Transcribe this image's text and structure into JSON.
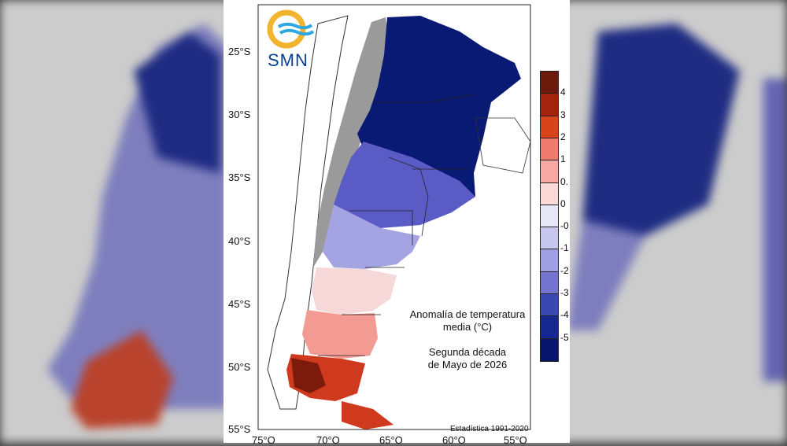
{
  "logo": {
    "text": "SMN",
    "ring_color": "#f3b42d",
    "wave_color": "#2fa8e0"
  },
  "map": {
    "title_line1": "Anomalía de temperatura",
    "title_line2": "media (°C)",
    "period_line1": "Segunda década",
    "period_line2": "de Mayo de 2026",
    "footer": "Estadística 1991-2020",
    "latitude_labels": [
      "25°S",
      "30°S",
      "35°S",
      "40°S",
      "45°S",
      "50°S",
      "55°S"
    ],
    "longitude_labels": [
      "75°O",
      "70°O",
      "65°O",
      "60°O",
      "55°O"
    ]
  },
  "legend": {
    "labels": [
      "4",
      "3",
      "2",
      "1",
      "0.",
      "0",
      "-0",
      "-1",
      "-2",
      "-3",
      "-4",
      "-5"
    ],
    "colors": [
      "#6b1a0c",
      "#a3230e",
      "#d8441b",
      "#f07a6e",
      "#f6a8a3",
      "#fbd9d7",
      "#e7e7f7",
      "#c6c6ef",
      "#9f9fe2",
      "#7474cf",
      "#3a49b2",
      "#16288f",
      "#071469"
    ]
  }
}
